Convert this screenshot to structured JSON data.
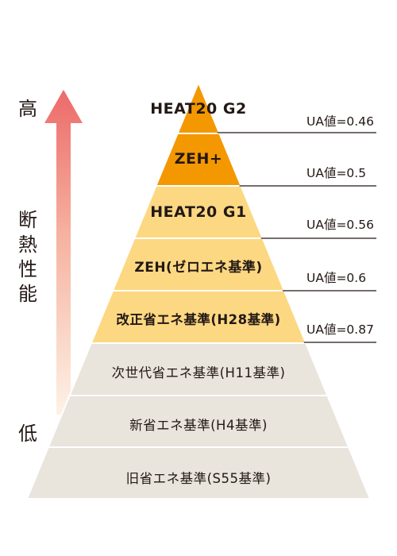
{
  "axis": {
    "high": "高",
    "low": "低",
    "title_chars": [
      "断",
      "熱",
      "性",
      "能"
    ]
  },
  "levels": [
    {
      "label": "HEAT20 G2",
      "ua": "UA値=0.46",
      "color": "#f39800"
    },
    {
      "label": "ZEH+",
      "ua": "UA値=0.5",
      "color": "#f39800"
    },
    {
      "label": "HEAT20 G1",
      "ua": "UA値=0.56",
      "color": "#fcd882"
    },
    {
      "label": "ZEH(ゼロエネ基準)",
      "ua": "UA値=0.6",
      "color": "#fcd882"
    },
    {
      "label": "改正省エネ基準(H28基準)",
      "ua": "UA値=0.87",
      "color": "#fcd882"
    },
    {
      "label": "次世代省エネ基準(H11基準)",
      "color": "#e9e4dc"
    },
    {
      "label": "新省エネ基準(H4基準)",
      "color": "#e9e4dc"
    },
    {
      "label": "旧省エネ基準(S55基準)",
      "color": "#e9e4dc"
    }
  ]
}
